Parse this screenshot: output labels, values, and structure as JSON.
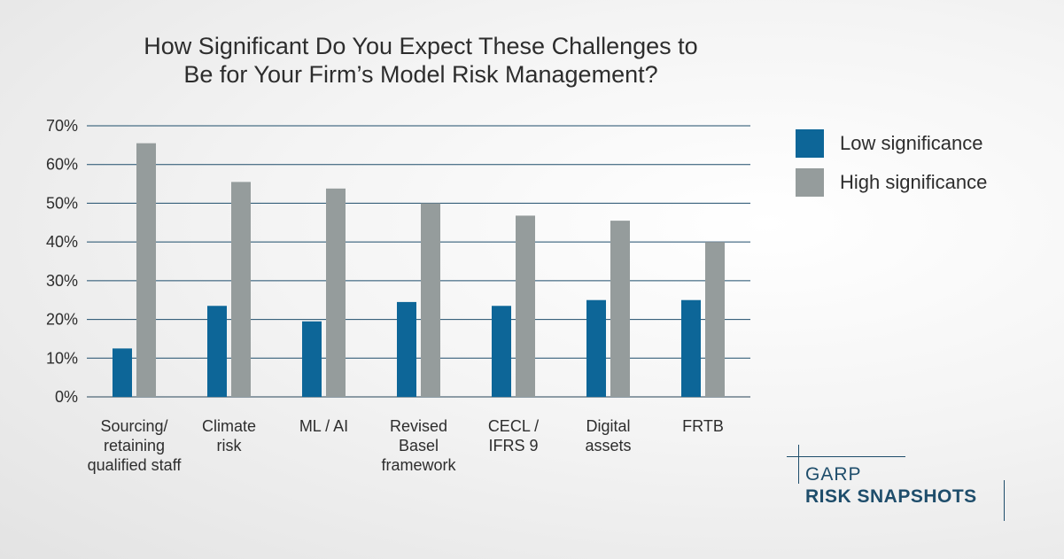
{
  "chart_data": {
    "type": "bar",
    "title": "How Significant Do You Expect These Challenges to Be for Your Firm’s Model Risk Management?",
    "title_lines": [
      "How Significant Do You Expect These Challenges to",
      "Be for Your Firm’s Model Risk Management?"
    ],
    "categories": [
      "Sourcing/ retaining qualified staff",
      "Climate risk",
      "ML / AI",
      "Revised Basel framework",
      "CECL / IFRS 9",
      "Digital assets",
      "FRTB"
    ],
    "category_lines": [
      [
        "Sourcing/",
        "retaining",
        "qualified staff"
      ],
      [
        "Climate",
        "risk"
      ],
      [
        "ML / AI"
      ],
      [
        "Revised",
        "Basel",
        "framework"
      ],
      [
        "CECL /",
        "IFRS 9"
      ],
      [
        "Digital",
        "assets"
      ],
      [
        "FRTB"
      ]
    ],
    "series": [
      {
        "name": "Low significance",
        "color": "#0d6698",
        "values": [
          12.5,
          23.5,
          19.5,
          24.5,
          23.5,
          25,
          25
        ]
      },
      {
        "name": "High significance",
        "color": "#959c9c",
        "values": [
          65.5,
          55.5,
          53.8,
          50,
          46.8,
          45.5,
          40
        ]
      }
    ],
    "ylim": [
      0,
      70
    ],
    "yticks": [
      "0%",
      "10%",
      "20%",
      "30%",
      "40%",
      "50%",
      "60%",
      "70%"
    ],
    "grid": true,
    "legend_position": "right"
  },
  "brand": {
    "top": "GARP",
    "bottom": "RISK SNAPSHOTS"
  }
}
